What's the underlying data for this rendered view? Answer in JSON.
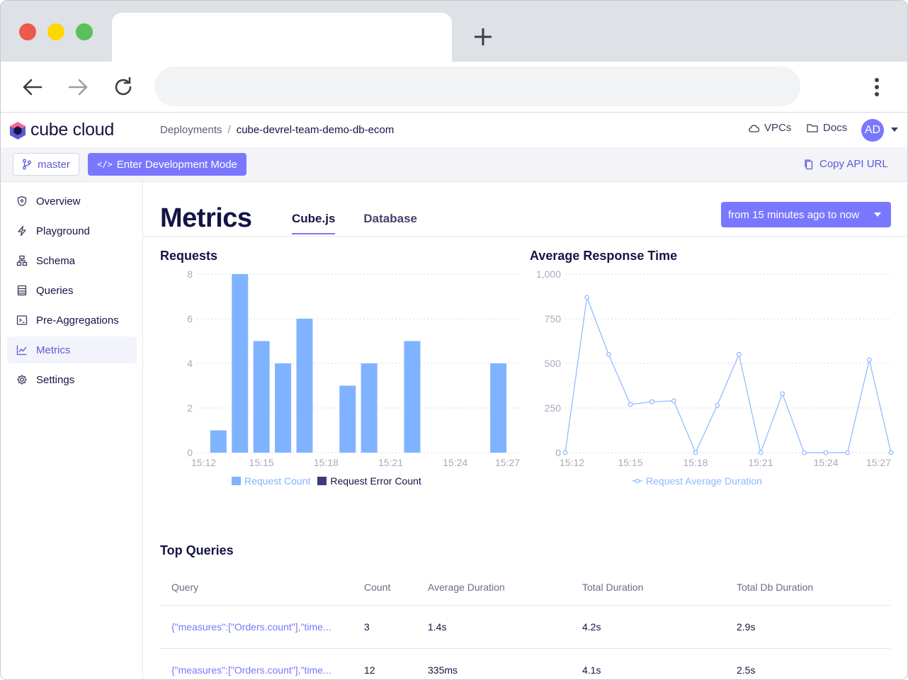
{
  "app": {
    "logo_text": "cube cloud",
    "breadcrumb": {
      "parent": "Deployments",
      "separator": "/",
      "current": "cube-devrel-team-demo-db-ecom"
    },
    "header_links": {
      "vpcs": "VPCs",
      "docs": "Docs"
    },
    "avatar_initials": "AD"
  },
  "subbar": {
    "branch_label": "master",
    "dev_mode_code": "</>",
    "dev_mode_label": "Enter Development Mode",
    "copy_api_label": "Copy API URL"
  },
  "sidebar": {
    "items": [
      {
        "label": "Overview",
        "icon": "shield-icon"
      },
      {
        "label": "Playground",
        "icon": "bolt-icon"
      },
      {
        "label": "Schema",
        "icon": "hierarchy-icon"
      },
      {
        "label": "Queries",
        "icon": "list-icon"
      },
      {
        "label": "Pre-Aggregations",
        "icon": "terminal-icon"
      },
      {
        "label": "Metrics",
        "icon": "chart-line-icon",
        "active": true
      },
      {
        "label": "Settings",
        "icon": "gear-icon"
      }
    ]
  },
  "page": {
    "title": "Metrics",
    "tabs": [
      {
        "label": "Cube.js",
        "active": true
      },
      {
        "label": "Database"
      }
    ],
    "time_range": "from 15 minutes ago to now"
  },
  "colors": {
    "accent": "#7a77ff",
    "bar": "#80b3ff",
    "error": "#3d3c78",
    "line": "#8ab8ff"
  },
  "chart_data": [
    {
      "type": "bar",
      "title": "Requests",
      "x_ticks": [
        "15:12",
        "15:15",
        "15:18",
        "15:21",
        "15:24",
        "15:27"
      ],
      "y_ticks": [
        "0",
        "2",
        "4",
        "6",
        "8"
      ],
      "ylim": [
        0,
        8
      ],
      "categories": [
        "15:12",
        "15:13",
        "15:14",
        "15:15",
        "15:16",
        "15:17",
        "15:18",
        "15:19",
        "15:20",
        "15:21",
        "15:22",
        "15:23",
        "15:24",
        "15:25",
        "15:26",
        "15:27"
      ],
      "series": [
        {
          "name": "Request Count",
          "values": [
            0,
            1,
            8,
            5,
            4,
            6,
            0,
            3,
            4,
            0,
            5,
            0,
            0,
            0,
            4,
            0
          ]
        },
        {
          "name": "Request Error Count",
          "values": [
            0,
            0,
            0,
            0,
            0,
            0,
            0,
            0,
            0,
            0,
            0,
            0,
            0,
            0,
            0,
            0
          ]
        }
      ],
      "grid": true,
      "legend": "bottom"
    },
    {
      "type": "line",
      "title": "Average Response Time",
      "x_ticks": [
        "15:12",
        "15:15",
        "15:18",
        "15:21",
        "15:24",
        "15:27"
      ],
      "y_ticks": [
        "0",
        "250",
        "500",
        "750",
        "1,000"
      ],
      "ylim": [
        0,
        1000
      ],
      "categories": [
        "15:12",
        "15:13",
        "15:14",
        "15:15",
        "15:16",
        "15:17",
        "15:18",
        "15:19",
        "15:20",
        "15:21",
        "15:22",
        "15:23",
        "15:24",
        "15:25",
        "15:26",
        "15:27"
      ],
      "series": [
        {
          "name": "Request Average Duration",
          "values": [
            0,
            870,
            550,
            270,
            285,
            290,
            0,
            265,
            550,
            0,
            330,
            0,
            0,
            0,
            520,
            0
          ]
        }
      ],
      "grid": true,
      "legend": "bottom"
    }
  ],
  "top_queries": {
    "title": "Top Queries",
    "columns": [
      "Query",
      "Count",
      "Average Duration",
      "Total Duration",
      "Total Db Duration"
    ],
    "rows": [
      {
        "query": "{\"measures\":[\"Orders.count\"],\"time...",
        "count": "3",
        "avg": "1.4s",
        "total": "4.2s",
        "db": "2.9s"
      },
      {
        "query": "{\"measures\":[\"Orders.count\"],\"time...",
        "count": "12",
        "avg": "335ms",
        "total": "4.1s",
        "db": "2.5s"
      }
    ]
  }
}
